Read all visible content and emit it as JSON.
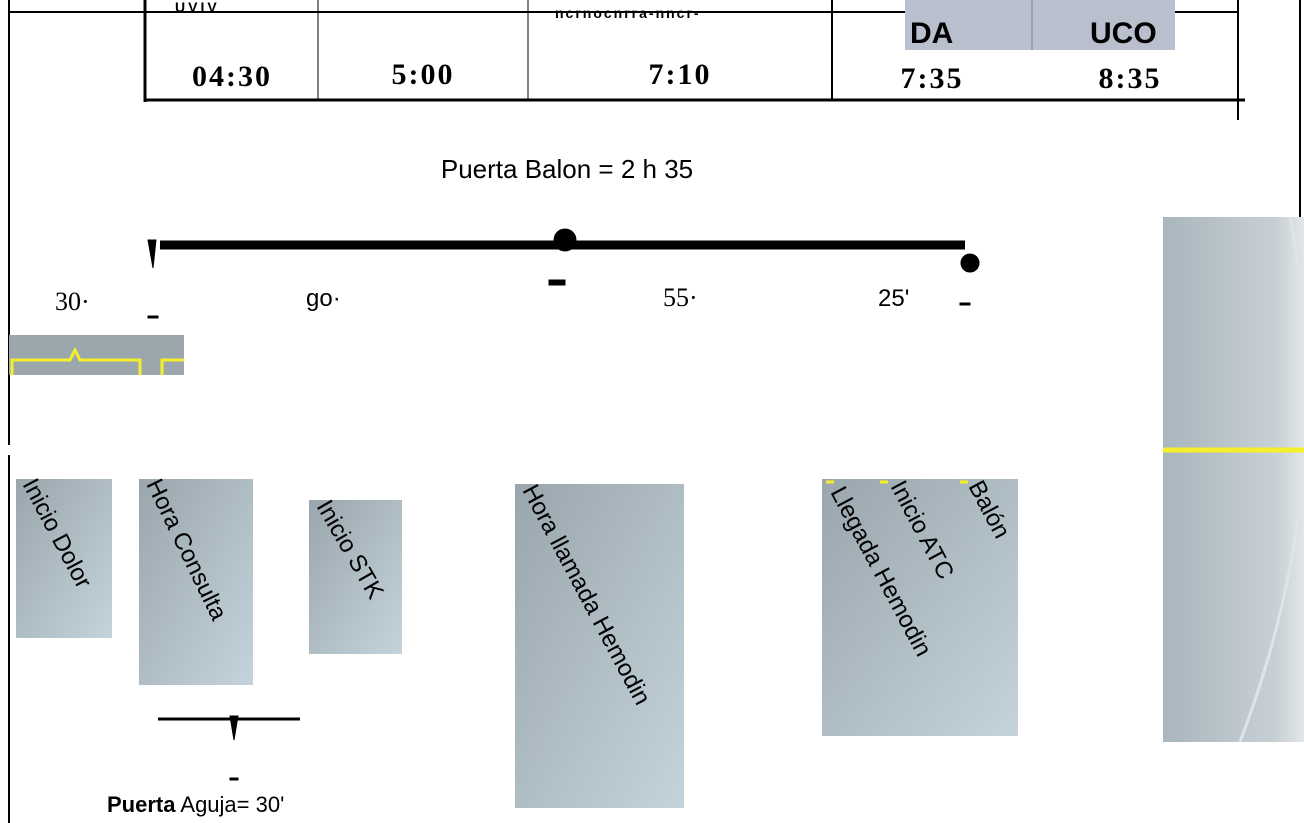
{
  "header_fragments": [
    "UVIV",
    "ncrnocnrra-nncr-",
    "DA",
    "UCO"
  ],
  "times": [
    "04:30",
    "5:00",
    "7:10",
    "7:35",
    "8:35"
  ],
  "door_to_balloon": "Puerta Balon = 2 h 35",
  "intervals": [
    "30·",
    "go·",
    "55·",
    "25'"
  ],
  "events": [
    "Inicio Dolor",
    "Hora Consulta",
    "Inicio STK",
    "Hora llamada Hemodin",
    "Balón",
    "Inicio ATC",
    "Llegada Hemodin"
  ],
  "door_to_needle": {
    "bold": "Puerta",
    "text": "Aguja= 30'"
  }
}
